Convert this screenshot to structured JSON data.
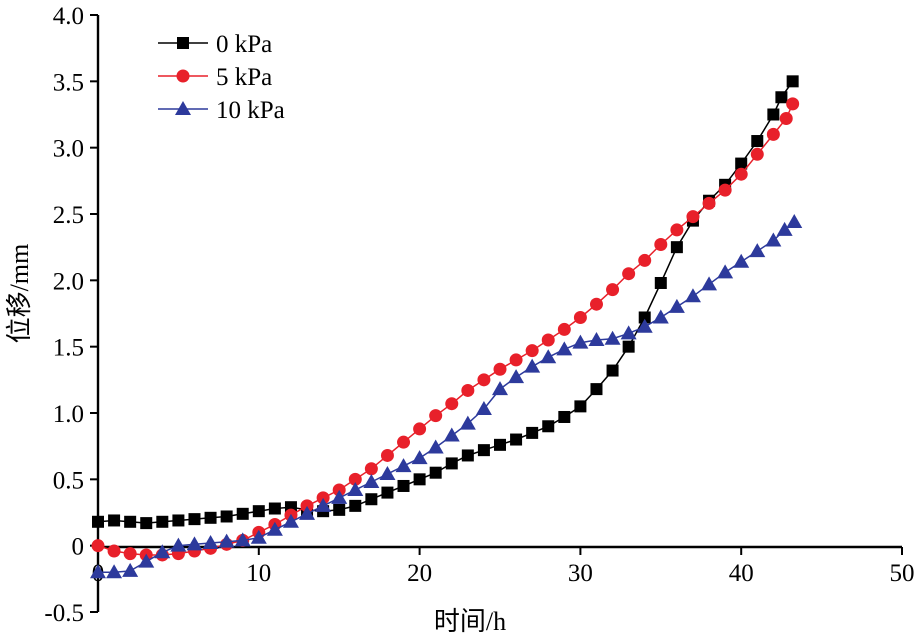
{
  "chart_data": {
    "type": "scatter",
    "xlabel": "时间/h",
    "ylabel": "位移/mm",
    "xlim": [
      0,
      50
    ],
    "ylim": [
      -0.5,
      4.0
    ],
    "x_ticks": [
      "0",
      "10",
      "20",
      "30",
      "40",
      "50"
    ],
    "y_ticks": [
      "-0.5",
      "0",
      "0.5",
      "1.0",
      "1.5",
      "2.0",
      "2.5",
      "3.0",
      "3.5",
      "4.0"
    ],
    "legend": {
      "position": "top-left"
    },
    "grid": false,
    "series": [
      {
        "name": "0 kPa",
        "color": "#000000",
        "marker": "square",
        "line": true,
        "points": [
          [
            0,
            0.18
          ],
          [
            1,
            0.19
          ],
          [
            2,
            0.18
          ],
          [
            3,
            0.17
          ],
          [
            4,
            0.18
          ],
          [
            5,
            0.19
          ],
          [
            6,
            0.2
          ],
          [
            7,
            0.21
          ],
          [
            8,
            0.22
          ],
          [
            9,
            0.24
          ],
          [
            10,
            0.26
          ],
          [
            11,
            0.28
          ],
          [
            12,
            0.29
          ],
          [
            13,
            0.27
          ],
          [
            14,
            0.26
          ],
          [
            15,
            0.27
          ],
          [
            16,
            0.3
          ],
          [
            17,
            0.35
          ],
          [
            18,
            0.4
          ],
          [
            19,
            0.45
          ],
          [
            20,
            0.5
          ],
          [
            21,
            0.55
          ],
          [
            22,
            0.62
          ],
          [
            23,
            0.68
          ],
          [
            24,
            0.72
          ],
          [
            25,
            0.76
          ],
          [
            26,
            0.8
          ],
          [
            27,
            0.85
          ],
          [
            28,
            0.9
          ],
          [
            29,
            0.97
          ],
          [
            30,
            1.05
          ],
          [
            31,
            1.18
          ],
          [
            32,
            1.32
          ],
          [
            33,
            1.5
          ],
          [
            34,
            1.72
          ],
          [
            35,
            1.98
          ],
          [
            36,
            2.25
          ],
          [
            37,
            2.45
          ],
          [
            38,
            2.6
          ],
          [
            39,
            2.72
          ],
          [
            40,
            2.88
          ],
          [
            41,
            3.05
          ],
          [
            42,
            3.25
          ],
          [
            42.5,
            3.38
          ],
          [
            43.2,
            3.5
          ]
        ]
      },
      {
        "name": "5 kPa",
        "color": "#e8202a",
        "marker": "circle",
        "line": true,
        "points": [
          [
            0,
            0.0
          ],
          [
            1,
            -0.04
          ],
          [
            2,
            -0.06
          ],
          [
            3,
            -0.07
          ],
          [
            4,
            -0.07
          ],
          [
            5,
            -0.06
          ],
          [
            6,
            -0.04
          ],
          [
            7,
            -0.02
          ],
          [
            8,
            0.01
          ],
          [
            9,
            0.04
          ],
          [
            10,
            0.1
          ],
          [
            11,
            0.16
          ],
          [
            12,
            0.23
          ],
          [
            13,
            0.3
          ],
          [
            14,
            0.36
          ],
          [
            15,
            0.42
          ],
          [
            16,
            0.5
          ],
          [
            17,
            0.58
          ],
          [
            18,
            0.68
          ],
          [
            19,
            0.78
          ],
          [
            20,
            0.88
          ],
          [
            21,
            0.98
          ],
          [
            22,
            1.07
          ],
          [
            23,
            1.17
          ],
          [
            24,
            1.25
          ],
          [
            25,
            1.33
          ],
          [
            26,
            1.4
          ],
          [
            27,
            1.47
          ],
          [
            28,
            1.55
          ],
          [
            29,
            1.63
          ],
          [
            30,
            1.72
          ],
          [
            31,
            1.82
          ],
          [
            32,
            1.93
          ],
          [
            33,
            2.05
          ],
          [
            34,
            2.15
          ],
          [
            35,
            2.27
          ],
          [
            36,
            2.38
          ],
          [
            37,
            2.48
          ],
          [
            38,
            2.58
          ],
          [
            39,
            2.68
          ],
          [
            40,
            2.8
          ],
          [
            41,
            2.95
          ],
          [
            42,
            3.1
          ],
          [
            42.8,
            3.22
          ],
          [
            43.2,
            3.33
          ]
        ]
      },
      {
        "name": "10 kPa",
        "color": "#2d3a9c",
        "marker": "triangle",
        "line": true,
        "points": [
          [
            0,
            -0.2
          ],
          [
            1,
            -0.2
          ],
          [
            2,
            -0.19
          ],
          [
            3,
            -0.12
          ],
          [
            4,
            -0.05
          ],
          [
            5,
            0.0
          ],
          [
            6,
            0.01
          ],
          [
            7,
            0.02
          ],
          [
            8,
            0.03
          ],
          [
            9,
            0.04
          ],
          [
            10,
            0.06
          ],
          [
            11,
            0.12
          ],
          [
            12,
            0.18
          ],
          [
            13,
            0.24
          ],
          [
            14,
            0.3
          ],
          [
            15,
            0.36
          ],
          [
            16,
            0.42
          ],
          [
            17,
            0.48
          ],
          [
            18,
            0.54
          ],
          [
            19,
            0.6
          ],
          [
            20,
            0.66
          ],
          [
            21,
            0.74
          ],
          [
            22,
            0.83
          ],
          [
            23,
            0.92
          ],
          [
            24,
            1.03
          ],
          [
            25,
            1.18
          ],
          [
            26,
            1.27
          ],
          [
            27,
            1.35
          ],
          [
            28,
            1.42
          ],
          [
            29,
            1.48
          ],
          [
            30,
            1.53
          ],
          [
            31,
            1.55
          ],
          [
            32,
            1.56
          ],
          [
            33,
            1.6
          ],
          [
            34,
            1.65
          ],
          [
            35,
            1.72
          ],
          [
            36,
            1.8
          ],
          [
            37,
            1.88
          ],
          [
            38,
            1.97
          ],
          [
            39,
            2.06
          ],
          [
            40,
            2.14
          ],
          [
            41,
            2.22
          ],
          [
            42,
            2.3
          ],
          [
            42.7,
            2.38
          ],
          [
            43.3,
            2.44
          ]
        ]
      }
    ]
  }
}
